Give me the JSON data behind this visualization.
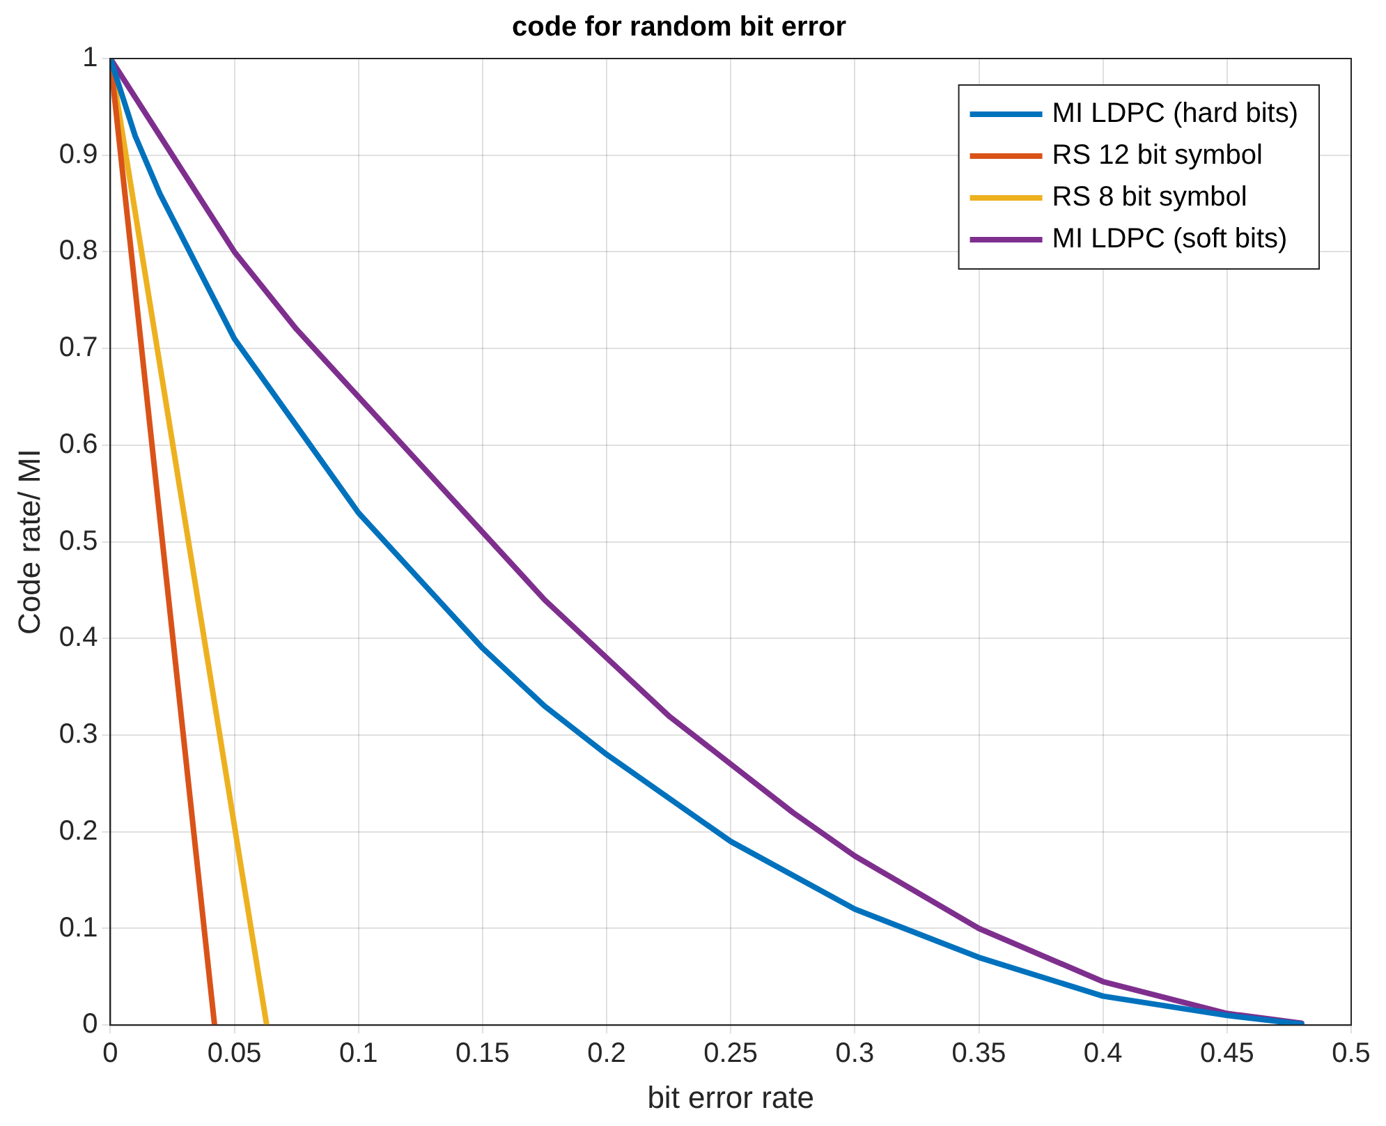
{
  "chart_data": {
    "type": "line",
    "title": "code for random bit error",
    "xlabel": "bit error rate",
    "ylabel": "Code rate/ MI",
    "xlim": [
      0,
      0.5
    ],
    "xticks": [
      0,
      0.05,
      0.1,
      0.15,
      0.2,
      0.25,
      0.3,
      0.35,
      0.4,
      0.45,
      0.5
    ],
    "ylim": [
      0,
      1
    ],
    "yticks": [
      0,
      0.1,
      0.2,
      0.3,
      0.4,
      0.5,
      0.6,
      0.7,
      0.8,
      0.9,
      1
    ],
    "grid": true,
    "legend": "top right",
    "marker": "none",
    "line_style": "solid",
    "series": [
      {
        "name": "MI LDPC (hard bits)",
        "color": "#0072bd",
        "x": [
          0,
          0.01,
          0.02,
          0.03,
          0.05,
          0.075,
          0.1,
          0.125,
          0.15,
          0.175,
          0.2,
          0.25,
          0.3,
          0.35,
          0.4,
          0.45,
          0.48
        ],
        "values": [
          1,
          0.92,
          0.86,
          0.81,
          0.71,
          0.62,
          0.53,
          0.46,
          0.39,
          0.33,
          0.28,
          0.19,
          0.12,
          0.07,
          0.03,
          0.01,
          0.001
        ]
      },
      {
        "name": "RS 12 bit symbol",
        "color": "#d95319",
        "x": [
          0,
          0.042
        ],
        "values": [
          1,
          0
        ]
      },
      {
        "name": "RS 8 bit symbol",
        "color": "#edb120",
        "x": [
          0,
          0.063
        ],
        "values": [
          1,
          0
        ]
      },
      {
        "name": "MI LDPC (soft bits)",
        "color": "#7e2f8e",
        "x": [
          0,
          0.025,
          0.05,
          0.075,
          0.1,
          0.125,
          0.15,
          0.175,
          0.2,
          0.225,
          0.25,
          0.275,
          0.3,
          0.35,
          0.4,
          0.45,
          0.48
        ],
        "values": [
          1,
          0.9,
          0.8,
          0.72,
          0.65,
          0.58,
          0.51,
          0.44,
          0.38,
          0.32,
          0.27,
          0.22,
          0.175,
          0.1,
          0.045,
          0.012,
          0.002
        ]
      }
    ]
  }
}
